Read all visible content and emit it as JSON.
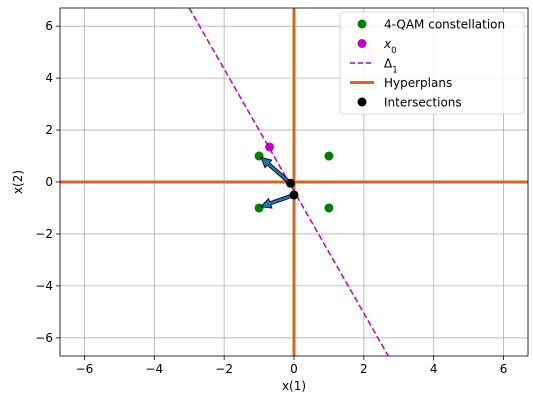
{
  "chart_data": {
    "type": "scatter",
    "xlabel": "x(1)",
    "ylabel": "x(2)",
    "xlim": [
      -6.7,
      6.7
    ],
    "ylim": [
      -6.7,
      6.7
    ],
    "xticks": [
      -6,
      -4,
      -2,
      0,
      2,
      4,
      6
    ],
    "yticks": [
      -6,
      -4,
      -2,
      0,
      2,
      4,
      6
    ],
    "xtick_labels": [
      "−6",
      "−4",
      "−2",
      "0",
      "2",
      "4",
      "6"
    ],
    "ytick_labels": [
      "−6",
      "−4",
      "−2",
      "0",
      "2",
      "4",
      "6"
    ],
    "grid": true,
    "legend_position": "top-right",
    "colors": {
      "constellation": "#008000",
      "x0": "#c000c0",
      "delta": "#c000c0",
      "hyperplans": "#d2691e",
      "intersections": "#000000",
      "arrow_fill": "#1f77b4",
      "grid": "#b0b0b0"
    },
    "series": [
      {
        "name": "4-QAM constellation",
        "kind": "points",
        "points": [
          [
            -1,
            1
          ],
          [
            1,
            1
          ],
          [
            -1,
            -1
          ],
          [
            1,
            -1
          ]
        ]
      },
      {
        "name": "x_0",
        "kind": "points",
        "points": [
          [
            -0.7,
            1.35
          ]
        ]
      },
      {
        "name": "Δ_1",
        "kind": "dashed-line",
        "points": [
          [
            -3.0,
            6.7
          ],
          [
            2.7,
            -6.7
          ]
        ]
      },
      {
        "name": "Hyperplans",
        "kind": "lines",
        "lines": [
          [
            [
              -6.7,
              0
            ],
            [
              6.7,
              0
            ]
          ],
          [
            [
              0,
              -6.7
            ],
            [
              0,
              6.7
            ]
          ]
        ]
      },
      {
        "name": "Intersections",
        "kind": "points",
        "points": [
          [
            -0.1,
            -0.05
          ],
          [
            0,
            -0.5
          ]
        ]
      }
    ],
    "arrows": [
      {
        "from": [
          -0.1,
          -0.05
        ],
        "to": [
          -0.95,
          0.95
        ]
      },
      {
        "from": [
          0,
          -0.5
        ],
        "to": [
          -0.95,
          -0.95
        ]
      }
    ],
    "legend": [
      {
        "label": "4-QAM constellation",
        "marker": "circle",
        "color": "#008000"
      },
      {
        "label": "x_0",
        "marker": "circle",
        "color": "#c000c0"
      },
      {
        "label": "Δ_1",
        "marker": "dashed-line",
        "color": "#c000c0"
      },
      {
        "label": "Hyperplans",
        "marker": "thick-line",
        "color": "#d2691e"
      },
      {
        "label": "Intersections",
        "marker": "circle",
        "color": "#000000"
      }
    ]
  }
}
